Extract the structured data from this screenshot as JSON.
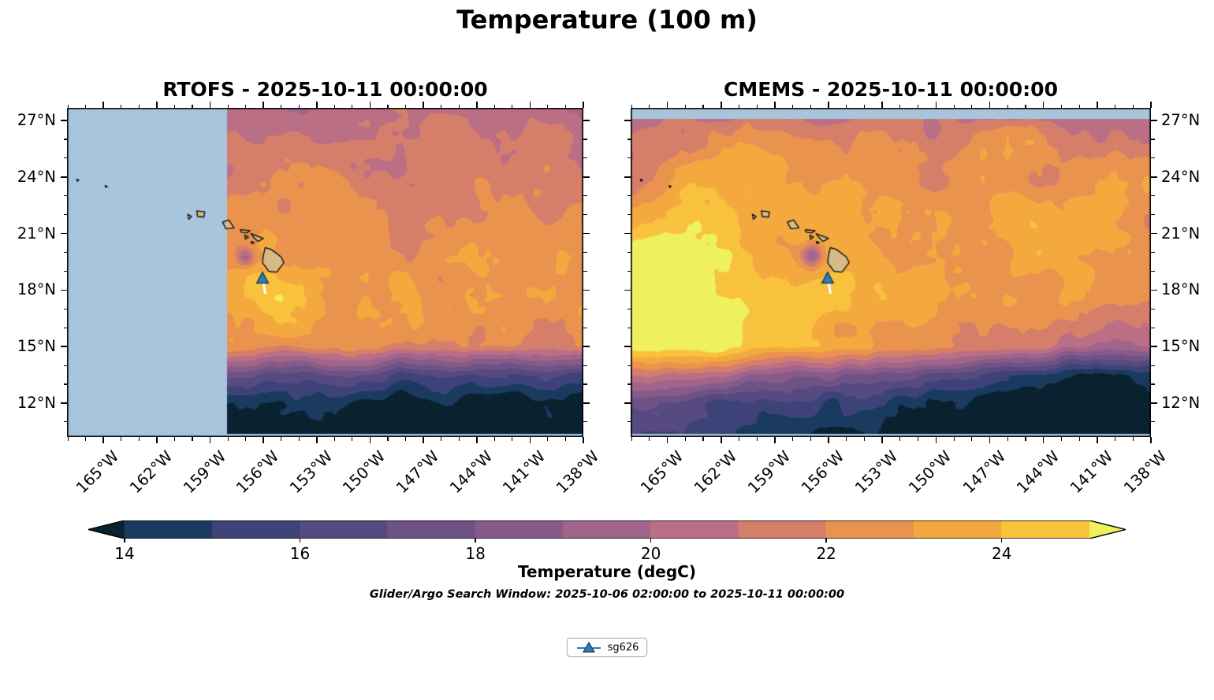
{
  "figure": {
    "title": "Temperature (100 m)"
  },
  "panels": [
    {
      "id": "rtofs",
      "title": "RTOFS - 2025-10-11 00:00:00",
      "lat_label_side": "left"
    },
    {
      "id": "cmems",
      "title": "CMEMS - 2025-10-11 00:00:00",
      "lat_label_side": "right"
    }
  ],
  "axes": {
    "lat_ticks": [
      {
        "value": 27,
        "label": "27°N"
      },
      {
        "value": 24,
        "label": "24°N"
      },
      {
        "value": 21,
        "label": "21°N"
      },
      {
        "value": 18,
        "label": "18°N"
      },
      {
        "value": 15,
        "label": "15°N"
      },
      {
        "value": 12,
        "label": "12°N"
      }
    ],
    "lon_ticks": [
      {
        "value": -165,
        "label": "165°W"
      },
      {
        "value": -162,
        "label": "162°W"
      },
      {
        "value": -159,
        "label": "159°W"
      },
      {
        "value": -156,
        "label": "156°W"
      },
      {
        "value": -153,
        "label": "153°W"
      },
      {
        "value": -150,
        "label": "150°W"
      },
      {
        "value": -147,
        "label": "147°W"
      },
      {
        "value": -144,
        "label": "144°W"
      },
      {
        "value": -141,
        "label": "141°W"
      },
      {
        "value": -138,
        "label": "138°W"
      }
    ],
    "minor_tick_step_deg": 1
  },
  "colorbar": {
    "label": "Temperature (degC)",
    "ticks": [
      14,
      16,
      18,
      20,
      22,
      24
    ],
    "range": [
      14,
      25
    ],
    "extend": "both",
    "under_color": "#0a2230",
    "over_color": "#eef05e",
    "band_colors": [
      "#1b3a60",
      "#3d4378",
      "#564a80",
      "#6e5286",
      "#875b89",
      "#a1648b",
      "#ba6f85",
      "#d57f6a",
      "#ea934f",
      "#f4a93f",
      "#f9c23d"
    ]
  },
  "subtitle": "Glider/Argo Search Window: 2025-10-06 02:00:00 to 2025-10-11 00:00:00",
  "legend": {
    "items": [
      {
        "label": "sg626",
        "marker": "triangle-up",
        "marker_color": "#2d7cb5",
        "marker_edge_color": "#15465f"
      }
    ]
  },
  "chart_data": {
    "type": "heatmap",
    "title": "Temperature (100 m)",
    "colorbar_label": "Temperature (degC)",
    "levels_degC": [
      14,
      15,
      16,
      17,
      18,
      19,
      20,
      21,
      22,
      23,
      24,
      25
    ],
    "lon_range": [
      -167.05,
      -138.0
    ],
    "lat_range": [
      10.2,
      27.67
    ],
    "no_data_color": "#a8c5de",
    "no_data_south_of_lat": 10.36,
    "island_color": "#d6ba87",
    "grid_lons": [
      -167,
      -164,
      -161,
      -158,
      -155,
      -152,
      -149,
      -146,
      -143,
      -140,
      -138
    ],
    "grid_lats": [
      27.7,
      25,
      22.5,
      20,
      17.5,
      15,
      13.5,
      12,
      10.2
    ],
    "panels": [
      {
        "id": "rtofs",
        "name": "RTOFS - 2025-10-11 00:00:00",
        "no_data_west_of_lon": -158.05,
        "eddy": {
          "lon": -157.0,
          "lat": 19.75,
          "delta_degC": -3.2,
          "radius_deg": 0.35
        },
        "temps_degC": [
          [
            20.1,
            20.1,
            20.2,
            20.2,
            20.4,
            20.3,
            20.5,
            20.3,
            20.2,
            20.4,
            20.2
          ],
          [
            20.6,
            20.7,
            20.9,
            21.1,
            21.3,
            20.9,
            21.1,
            21.3,
            20.9,
            21.1,
            20.9
          ],
          [
            21.6,
            21.9,
            22.1,
            22.3,
            22.1,
            22.3,
            22.1,
            21.9,
            22.1,
            21.7,
            21.9
          ],
          [
            22.4,
            22.6,
            22.7,
            22.9,
            23.1,
            22.7,
            22.6,
            22.5,
            22.7,
            22.4,
            22.3
          ],
          [
            22.9,
            23.1,
            23.1,
            23.0,
            24.4,
            23.1,
            22.9,
            22.7,
            22.9,
            22.6,
            22.5
          ],
          [
            22.6,
            22.9,
            22.6,
            22.9,
            22.4,
            22.1,
            21.9,
            21.6,
            21.9,
            21.6,
            21.3
          ],
          [
            19.0,
            18.5,
            18.0,
            17.5,
            17.0,
            16.6,
            16.6,
            16.1,
            16.6,
            16.1,
            15.6
          ],
          [
            15.0,
            14.6,
            14.3,
            14.1,
            13.9,
            13.7,
            13.9,
            13.6,
            13.7,
            13.5,
            13.4
          ],
          [
            13.9,
            13.6,
            13.3,
            13.1,
            12.9,
            12.9,
            13.0,
            12.8,
            12.9,
            12.7,
            12.6
          ]
        ]
      },
      {
        "id": "cmems",
        "name": "CMEMS - 2025-10-11 00:00:00",
        "no_data_north_of_lat": 27.08,
        "eddy": {
          "lon": -156.9,
          "lat": 19.8,
          "delta_degC": -4.5,
          "radius_deg": 0.4
        },
        "temps_degC": [
          [
            20.3,
            20.4,
            20.5,
            20.6,
            20.5,
            20.4,
            20.5,
            20.6,
            20.4,
            20.5,
            20.4
          ],
          [
            21.3,
            22.1,
            23.6,
            22.6,
            22.1,
            21.9,
            22.4,
            23.1,
            22.3,
            22.6,
            21.9
          ],
          [
            23.1,
            24.1,
            23.6,
            23.1,
            23.9,
            22.9,
            22.6,
            23.3,
            22.6,
            22.9,
            22.4
          ],
          [
            25.6,
            25.9,
            24.6,
            23.6,
            24.4,
            23.1,
            23.6,
            22.9,
            23.3,
            22.7,
            22.5
          ],
          [
            25.9,
            26.1,
            25.6,
            24.9,
            24.1,
            23.6,
            23.1,
            23.4,
            22.9,
            22.6,
            22.4
          ],
          [
            25.6,
            25.9,
            25.1,
            24.3,
            23.3,
            22.6,
            22.1,
            21.6,
            20.1,
            19.6,
            20.6
          ],
          [
            21.1,
            20.6,
            19.6,
            18.6,
            17.6,
            17.1,
            16.1,
            15.1,
            14.3,
            14.1,
            14.6
          ],
          [
            17.1,
            16.6,
            16.1,
            15.6,
            15.1,
            14.4,
            13.9,
            13.3,
            13.1,
            12.9,
            13.1
          ],
          [
            15.6,
            15.1,
            14.6,
            14.1,
            13.6,
            13.1,
            12.9,
            12.7,
            12.6,
            12.5,
            12.6
          ]
        ]
      }
    ],
    "islands": [
      {
        "name": "hawaii-big-island",
        "polygon": [
          [
            -155.9,
            20.25
          ],
          [
            -155.55,
            20.15
          ],
          [
            -155.0,
            19.75
          ],
          [
            -154.85,
            19.45
          ],
          [
            -155.25,
            18.95
          ],
          [
            -155.7,
            19.0
          ],
          [
            -156.05,
            19.45
          ],
          [
            -156.0,
            19.85
          ]
        ]
      },
      {
        "name": "maui",
        "polygon": [
          [
            -156.7,
            21.0
          ],
          [
            -156.45,
            20.9
          ],
          [
            -156.0,
            20.75
          ],
          [
            -156.3,
            20.58
          ],
          [
            -156.55,
            20.8
          ]
        ]
      },
      {
        "name": "kahoolawe",
        "polygon": [
          [
            -156.68,
            20.58
          ],
          [
            -156.52,
            20.52
          ],
          [
            -156.66,
            20.46
          ]
        ]
      },
      {
        "name": "lanai",
        "polygon": [
          [
            -157.05,
            20.9
          ],
          [
            -156.84,
            20.82
          ],
          [
            -157.0,
            20.7
          ]
        ]
      },
      {
        "name": "molokai",
        "polygon": [
          [
            -157.3,
            21.2
          ],
          [
            -156.75,
            21.15
          ],
          [
            -156.95,
            21.03
          ],
          [
            -157.25,
            21.07
          ]
        ]
      },
      {
        "name": "oahu",
        "polygon": [
          [
            -158.3,
            21.6
          ],
          [
            -157.95,
            21.72
          ],
          [
            -157.65,
            21.3
          ],
          [
            -158.1,
            21.25
          ]
        ]
      },
      {
        "name": "kauai",
        "polygon": [
          [
            -159.75,
            22.2
          ],
          [
            -159.3,
            22.15
          ],
          [
            -159.35,
            21.87
          ],
          [
            -159.7,
            21.9
          ]
        ]
      },
      {
        "name": "niihau",
        "polygon": [
          [
            -160.25,
            22.02
          ],
          [
            -160.04,
            21.9
          ],
          [
            -160.2,
            21.76
          ]
        ]
      },
      {
        "name": "nw-islet-1",
        "polygon": [
          [
            -166.5,
            23.88
          ],
          [
            -166.38,
            23.84
          ],
          [
            -166.48,
            23.78
          ]
        ]
      },
      {
        "name": "nw-islet-2",
        "polygon": [
          [
            -164.9,
            23.55
          ],
          [
            -164.78,
            23.5
          ],
          [
            -164.88,
            23.45
          ]
        ]
      }
    ],
    "glider": {
      "name": "sg626",
      "lon": -156.05,
      "lat": 18.62,
      "track": [
        [
          -155.98,
          18.3
        ],
        [
          -155.9,
          17.85
        ]
      ]
    }
  }
}
